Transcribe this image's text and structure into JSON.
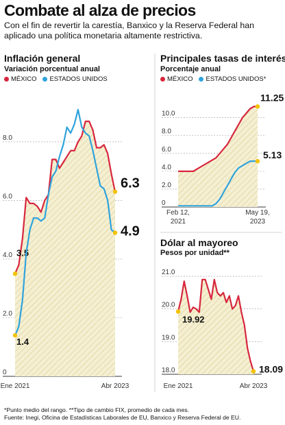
{
  "header": {
    "title": "Combate al alza de precios",
    "intro": "Con el fin de revertir la carestía, Banxico y la Reserva Federal han aplicado una política monetaria altamente restrictiva."
  },
  "colors": {
    "mexico": "#d7263d",
    "usa": "#2ea3dc",
    "marker": "#f2c200",
    "fill": "#f5efd2",
    "hatch": "#d9cd8f"
  },
  "footnote": {
    "line1": "*Punto medio del rango. **Tipo de cambio FIX, promedio de cada mes.",
    "line2": "Fuente: Inegi, Oficina de Estadísticas Laborales de EU, Banxico y Reserva Federal de EU."
  },
  "chart_data": [
    {
      "type": "line",
      "title": "Inflación general",
      "subtitle": "Variación porcentual anual",
      "ylim": [
        0,
        9.8
      ],
      "yticks": [
        "0",
        "2.0",
        "4.0",
        "6.0",
        "8.0"
      ],
      "x_labels": [
        "Ene 2021",
        "Abr 2023"
      ],
      "legend": [
        "MÉXICO",
        "ESTADOS UNIDOS"
      ],
      "series": [
        {
          "name": "MÉXICO",
          "values": [
            3.5,
            3.8,
            4.7,
            6.1,
            5.9,
            5.9,
            5.8,
            5.6,
            6.0,
            6.2,
            7.4,
            7.4,
            7.1,
            7.3,
            7.5,
            7.7,
            7.7,
            8.0,
            8.2,
            8.7,
            8.7,
            8.4,
            7.8,
            7.8,
            7.9,
            7.6,
            6.9,
            6.3
          ],
          "start_label": "3.5",
          "end_label": "6.3"
        },
        {
          "name": "ESTADOS UNIDOS",
          "values": [
            1.4,
            1.7,
            2.6,
            4.2,
            5.0,
            5.4,
            5.4,
            5.3,
            5.4,
            6.2,
            6.8,
            7.0,
            7.5,
            7.9,
            8.5,
            8.3,
            8.6,
            9.1,
            8.5,
            8.3,
            8.2,
            7.7,
            7.1,
            6.5,
            6.4,
            6.0,
            5.0,
            4.9
          ],
          "start_label": "1.4",
          "end_label": "4.9"
        }
      ]
    },
    {
      "type": "line",
      "title": "Principales tasas de interés",
      "subtitle": "Porcentaje anual",
      "ylim": [
        0,
        12.2
      ],
      "yticks": [
        "0",
        "2.0",
        "4.0",
        "6.0",
        "8.0",
        "10.0"
      ],
      "x_labels": [
        "Feb 12,\n2021",
        "May 19,\n2023"
      ],
      "legend": [
        "MÉXICO",
        "ESTADOS UNIDOS*"
      ],
      "series": [
        {
          "name": "MÉXICO",
          "values": [
            4.0,
            4.0,
            4.0,
            4.0,
            4.0,
            4.25,
            4.5,
            4.75,
            5.0,
            5.25,
            5.5,
            6.0,
            6.5,
            7.0,
            7.75,
            8.5,
            9.25,
            10.0,
            10.5,
            11.0,
            11.25,
            11.25
          ],
          "end_label": "11.25"
        },
        {
          "name": "ESTADOS UNIDOS*",
          "values": [
            0.13,
            0.13,
            0.13,
            0.13,
            0.13,
            0.13,
            0.13,
            0.13,
            0.13,
            0.13,
            0.38,
            0.88,
            1.63,
            2.38,
            3.13,
            3.88,
            4.38,
            4.63,
            4.88,
            5.13,
            5.13,
            5.13
          ],
          "end_label": "5.13"
        }
      ]
    },
    {
      "type": "line",
      "title": "Dólar al mayoreo",
      "subtitle": "Pesos por unidad**",
      "ylim": [
        18.0,
        21.4
      ],
      "yticks": [
        "18.0",
        "19.0",
        "20.0",
        "21.0"
      ],
      "x_labels": [
        "Ene 2021",
        "Abr 2023"
      ],
      "series": [
        {
          "name": "",
          "values": [
            19.92,
            20.3,
            20.85,
            20.4,
            19.9,
            20.05,
            20.0,
            19.9,
            20.9,
            20.9,
            20.6,
            20.3,
            20.9,
            20.5,
            20.4,
            20.5,
            20.2,
            20.4,
            20.0,
            20.1,
            20.4,
            19.9,
            19.5,
            18.8,
            18.4,
            18.09
          ],
          "start_label": "19.92",
          "end_label": "18.09"
        }
      ]
    }
  ]
}
